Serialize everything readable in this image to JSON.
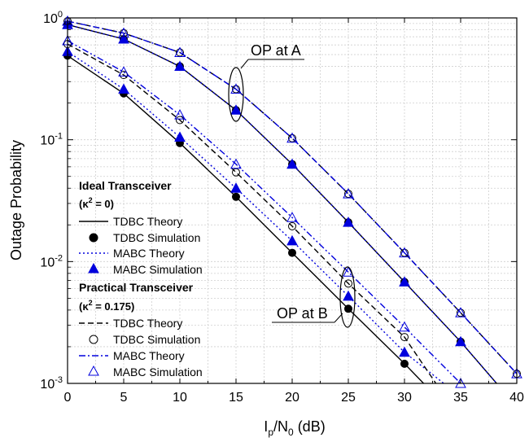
{
  "chart_data": {
    "type": "line",
    "title": "",
    "xlabel_main": "I",
    "xlabel_sub": "p",
    "xlabel_mid": "/N",
    "xlabel_sub2": "0",
    "xlabel_tail": " (dB)",
    "ylabel": "Outage Probability",
    "xlim": [
      0,
      40
    ],
    "ylim": [
      0.001,
      1
    ],
    "yscale": "log",
    "grid": true,
    "xticks": [
      "0",
      "5",
      "10",
      "15",
      "20",
      "25",
      "30",
      "35",
      "40"
    ],
    "yticks": [
      {
        "base": "10",
        "exp": "0"
      },
      {
        "base": "10",
        "exp": "-1"
      },
      {
        "base": "10",
        "exp": "-2"
      },
      {
        "base": "10",
        "exp": "-3"
      }
    ],
    "annotations": [
      {
        "text": "OP at A",
        "x": 15,
        "y": 0.22
      },
      {
        "text": "OP at B",
        "x": 25,
        "y": 0.0052
      }
    ],
    "legend": {
      "placement": "bottom-left",
      "group1_title": "Ideal Transceiver",
      "group1_kappa": "(κ",
      "group1_kappa_exp": "2",
      "group1_kappa_val": " = 0)",
      "group2_title": "Practical Transceiver",
      "group2_kappa": "(κ",
      "group2_kappa_exp": "2",
      "group2_kappa_val": " = 0.175)",
      "entries": [
        "TDBC Theory",
        "TDBC Simulation",
        "MABC Theory",
        "MABC Simulation",
        "TDBC Theory",
        "TDBC Simulation",
        "MABC Theory",
        "MABC Simulation"
      ]
    },
    "series": [
      {
        "name": "TDBC Theory (Ideal) - OP at A",
        "color": "#000000",
        "style": "solid",
        "x": [
          0,
          5,
          10,
          15,
          20,
          25,
          30,
          35,
          38.2
        ],
        "y": [
          0.88,
          0.67,
          0.4,
          0.175,
          0.063,
          0.021,
          0.0068,
          0.0022,
          0.001
        ]
      },
      {
        "name": "TDBC Theory (Ideal) - OP at B",
        "color": "#000000",
        "style": "solid",
        "x": [
          0,
          5,
          10,
          15,
          20,
          25,
          30,
          31.7
        ],
        "y": [
          0.49,
          0.24,
          0.094,
          0.034,
          0.0118,
          0.0041,
          0.00145,
          0.001
        ]
      },
      {
        "name": "TDBC Simulation (Ideal)",
        "color": "#000000",
        "style": "filled-circle",
        "x": [
          0,
          5,
          10,
          15,
          20,
          25,
          30,
          35,
          0,
          5,
          10,
          15,
          20,
          25,
          30
        ],
        "y": [
          0.88,
          0.67,
          0.4,
          0.175,
          0.063,
          0.021,
          0.0068,
          0.0022,
          0.49,
          0.24,
          0.094,
          0.034,
          0.0118,
          0.0041,
          0.00145
        ]
      },
      {
        "name": "MABC Theory (Ideal) - OP at A",
        "color": "#0000dd",
        "style": "dotted",
        "x": [
          0,
          5,
          10,
          15,
          20,
          25,
          30,
          35,
          38.2
        ],
        "y": [
          0.88,
          0.67,
          0.4,
          0.175,
          0.063,
          0.021,
          0.0068,
          0.0022,
          0.001
        ]
      },
      {
        "name": "MABC Theory (Ideal) - OP at B",
        "color": "#0000dd",
        "style": "dotted",
        "x": [
          0,
          5,
          10,
          15,
          20,
          25,
          30,
          33.5
        ],
        "y": [
          0.53,
          0.26,
          0.105,
          0.04,
          0.0148,
          0.0052,
          0.0018,
          0.001
        ]
      },
      {
        "name": "MABC Simulation (Ideal)",
        "color": "#0000dd",
        "style": "filled-triangle",
        "x": [
          0,
          5,
          10,
          15,
          20,
          25,
          30,
          35,
          0,
          5,
          10,
          15,
          20,
          25,
          30
        ],
        "y": [
          0.88,
          0.67,
          0.4,
          0.175,
          0.063,
          0.021,
          0.0068,
          0.0022,
          0.53,
          0.26,
          0.105,
          0.04,
          0.0148,
          0.0052,
          0.0018
        ]
      },
      {
        "name": "TDBC Theory (Practical) - OP at A",
        "color": "#000000",
        "style": "dashed",
        "x": [
          0,
          5,
          10,
          15,
          20,
          25,
          30,
          35,
          40
        ],
        "y": [
          0.94,
          0.75,
          0.52,
          0.26,
          0.103,
          0.036,
          0.0118,
          0.0038,
          0.0012
        ]
      },
      {
        "name": "TDBC Theory (Practical) - OP at B",
        "color": "#000000",
        "style": "dashed",
        "x": [
          0,
          5,
          10,
          15,
          20,
          25,
          30,
          32.8
        ],
        "y": [
          0.61,
          0.34,
          0.145,
          0.054,
          0.0195,
          0.0066,
          0.0024,
          0.001
        ]
      },
      {
        "name": "TDBC Simulation (Practical)",
        "color": "#000000",
        "style": "open-circle",
        "x": [
          0,
          5,
          10,
          15,
          20,
          25,
          30,
          35,
          40,
          0,
          5,
          10,
          15,
          20,
          25,
          30
        ],
        "y": [
          0.94,
          0.75,
          0.52,
          0.26,
          0.103,
          0.036,
          0.0118,
          0.0038,
          0.0012,
          0.61,
          0.34,
          0.145,
          0.054,
          0.0195,
          0.0066,
          0.0024
        ]
      },
      {
        "name": "MABC Theory (Practical) - OP at A",
        "color": "#0000dd",
        "style": "dashdot",
        "x": [
          0,
          5,
          10,
          15,
          20,
          25,
          30,
          35,
          40
        ],
        "y": [
          0.94,
          0.75,
          0.52,
          0.26,
          0.103,
          0.036,
          0.0118,
          0.0038,
          0.0012
        ]
      },
      {
        "name": "MABC Theory (Practical) - OP at B",
        "color": "#0000dd",
        "style": "dashdotdot",
        "x": [
          0,
          5,
          10,
          15,
          20,
          25,
          30,
          35
        ],
        "y": [
          0.65,
          0.36,
          0.16,
          0.063,
          0.023,
          0.0082,
          0.0029,
          0.001
        ]
      },
      {
        "name": "MABC Simulation (Practical)",
        "color": "#0000dd",
        "style": "open-triangle",
        "x": [
          0,
          5,
          10,
          15,
          20,
          25,
          30,
          35,
          40,
          0,
          5,
          10,
          15,
          20,
          25,
          30,
          35
        ],
        "y": [
          0.94,
          0.75,
          0.52,
          0.26,
          0.103,
          0.036,
          0.0118,
          0.0038,
          0.0012,
          0.65,
          0.36,
          0.16,
          0.063,
          0.023,
          0.0082,
          0.0029,
          0.001
        ]
      }
    ]
  }
}
